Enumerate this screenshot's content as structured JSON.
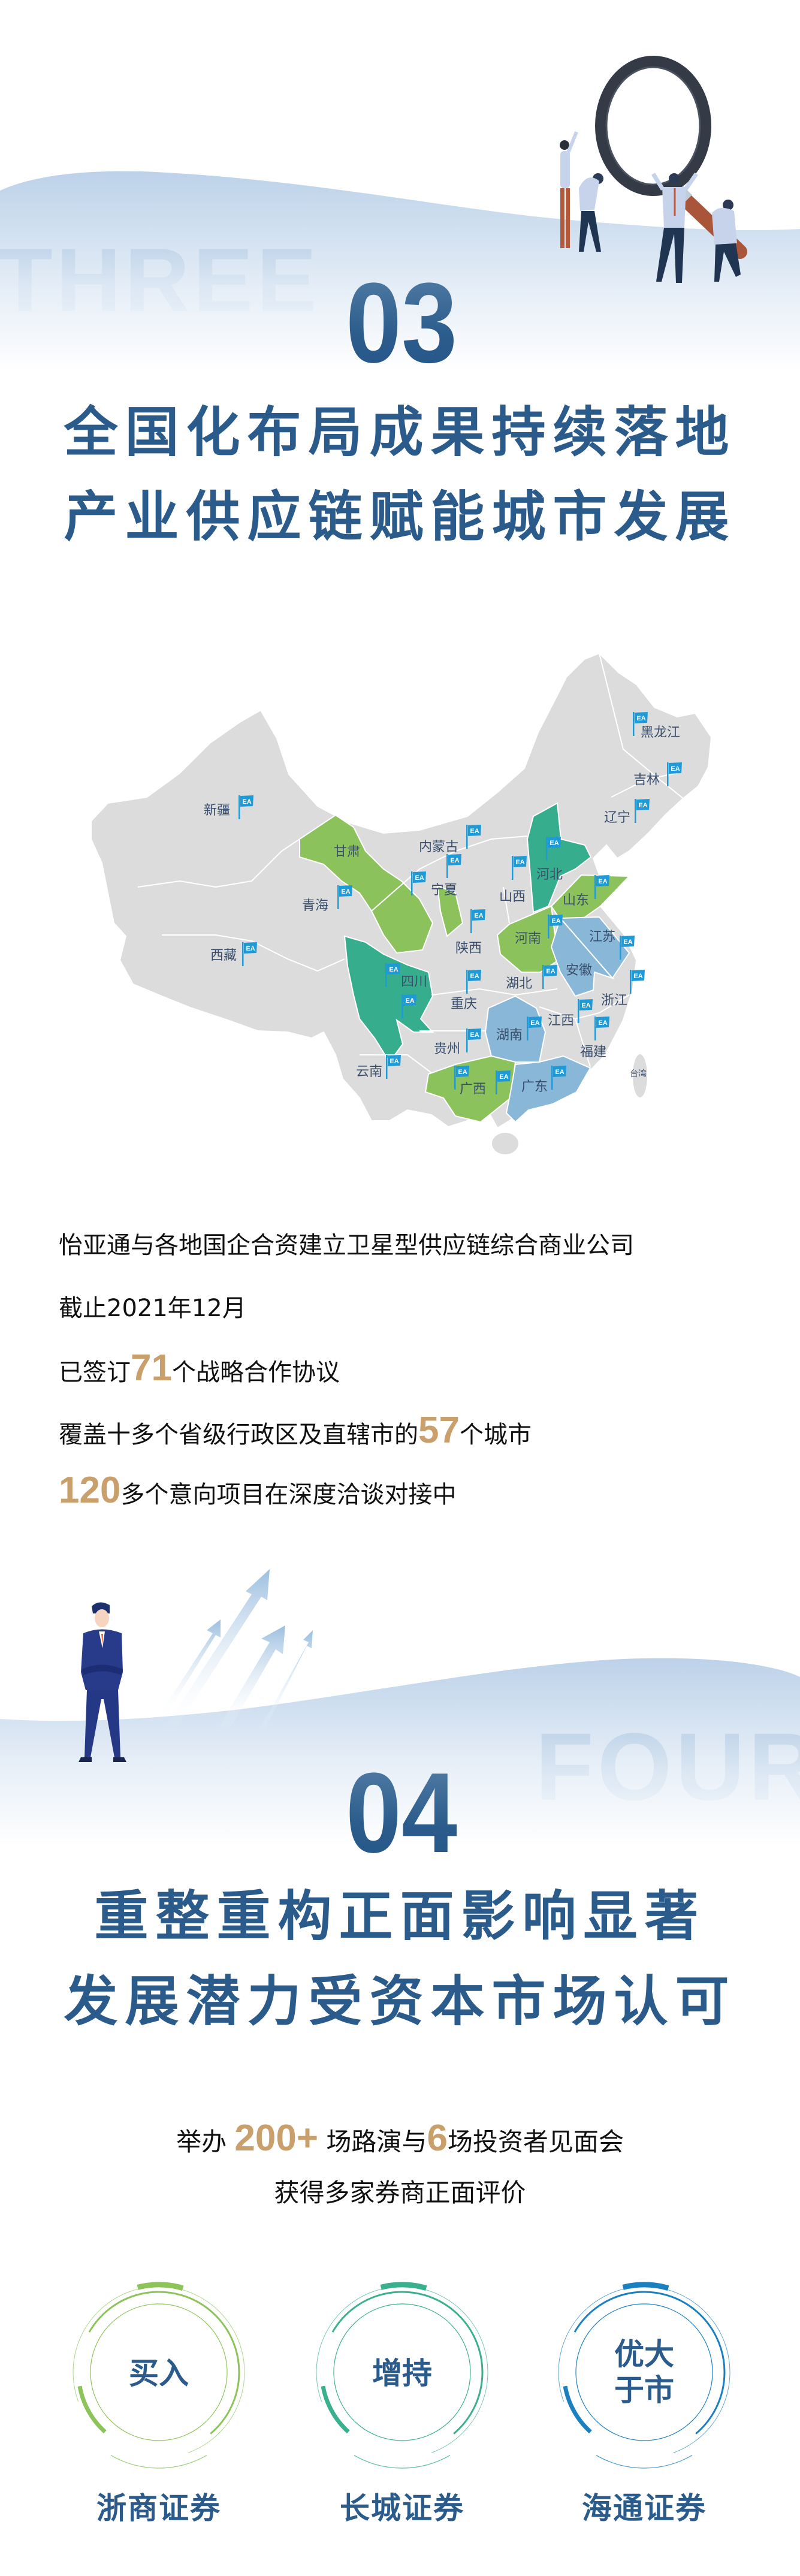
{
  "section3": {
    "ghost_word": "THREE",
    "number": "03",
    "headline_lines": [
      "全国化布局成果持续落地",
      "产业供应链赋能城市发展"
    ]
  },
  "map": {
    "colors": {
      "base": "#dcdcdc",
      "green": "#8cc25c",
      "teal": "#36ae8d",
      "blue": "#88b7d8",
      "flag": "#1e9ad6"
    },
    "flag_logo": "EA",
    "provinces": [
      {
        "name": "黑龙江",
        "highlight": null
      },
      {
        "name": "吉林",
        "highlight": null
      },
      {
        "name": "辽宁",
        "highlight": null
      },
      {
        "name": "新疆",
        "highlight": null
      },
      {
        "name": "甘肃",
        "highlight": "green"
      },
      {
        "name": "内蒙古",
        "highlight": null
      },
      {
        "name": "宁夏",
        "highlight": "green"
      },
      {
        "name": "青海",
        "highlight": null
      },
      {
        "name": "河北",
        "highlight": "teal"
      },
      {
        "name": "山西",
        "highlight": null
      },
      {
        "name": "山东",
        "highlight": "green"
      },
      {
        "name": "河南",
        "highlight": "green"
      },
      {
        "name": "陕西",
        "highlight": null
      },
      {
        "name": "江苏",
        "highlight": "blue"
      },
      {
        "name": "西藏",
        "highlight": null
      },
      {
        "name": "安徽",
        "highlight": "blue"
      },
      {
        "name": "四川",
        "highlight": "teal"
      },
      {
        "name": "湖北",
        "highlight": null
      },
      {
        "name": "浙江",
        "highlight": null
      },
      {
        "name": "重庆",
        "highlight": null
      },
      {
        "name": "江西",
        "highlight": null
      },
      {
        "name": "湖南",
        "highlight": "blue"
      },
      {
        "name": "贵州",
        "highlight": null
      },
      {
        "name": "福建",
        "highlight": null
      },
      {
        "name": "云南",
        "highlight": null
      },
      {
        "name": "广西",
        "highlight": "green"
      },
      {
        "name": "广东",
        "highlight": "blue"
      },
      {
        "name": "台湾",
        "highlight": null
      }
    ]
  },
  "stats": {
    "line1": "怡亚通与各地国企合资建立卫星型供应链综合商业公司",
    "line2": "截止2021年12月",
    "line3": {
      "before": "已签订",
      "number": "71",
      "after": "个战略合作协议"
    },
    "line4": {
      "before": "覆盖十多个省级行政区及直辖市的",
      "number": "57",
      "after": "个城市"
    },
    "line5": {
      "number": "120",
      "after": "多个意向项目在深度洽谈对接中"
    },
    "highlight_color": "#c9a06c"
  },
  "section4": {
    "ghost_word": "FOUR",
    "number": "04",
    "headline_lines": [
      "重整重构正面影响显著",
      "发展潜力受资本市场认可"
    ]
  },
  "investor": {
    "line1": {
      "before": "举办 ",
      "number": "200+",
      "middle": " 场路演与",
      "number2": "6",
      "after": "场投资者见面会"
    },
    "line2": "获得多家券商正面评价"
  },
  "ratings": [
    {
      "rating": "买入",
      "broker": "浙商证券",
      "color": "#8cc45a"
    },
    {
      "rating": "增持",
      "broker": "长城证券",
      "color": "#3ab08f"
    },
    {
      "rating": "优大\n于市",
      "rating_lines": [
        "优大",
        "于市"
      ],
      "broker": "海通证券",
      "color": "#1a80bf"
    }
  ]
}
